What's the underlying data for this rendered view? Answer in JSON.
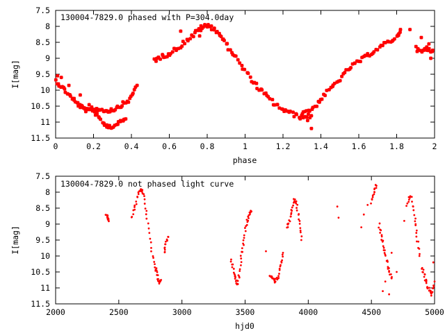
{
  "colors": {
    "points": "#ff0000",
    "axes": "#000000",
    "background": "#ffffff"
  },
  "chart_data": [
    {
      "type": "scatter",
      "title": "130004-7829.0 phased with P=304.0day",
      "xlabel": "phase",
      "ylabel": "I[mag]",
      "xlim": [
        0,
        2
      ],
      "ylim": [
        7.5,
        11.5
      ],
      "y_inverted": true,
      "grid": false,
      "legend": "none",
      "marker": "star",
      "xticks": [
        "0",
        "0.2",
        "0.4",
        "0.6",
        "0.8",
        "1",
        "1.2",
        "1.4",
        "1.6",
        "1.8",
        "2"
      ],
      "yticks": [
        "7.5",
        "8",
        "8.5",
        "9",
        "9.5",
        "10",
        "10.5",
        "11",
        "11.5"
      ],
      "segments": [
        {
          "x": [
            0.0,
            0.04,
            0.08,
            0.11,
            0.14,
            0.17,
            0.2,
            0.23,
            0.27,
            0.31,
            0.35,
            0.39,
            0.43
          ],
          "y": [
            9.7,
            9.95,
            10.2,
            10.4,
            10.55,
            10.65,
            10.6,
            10.6,
            10.65,
            10.6,
            10.45,
            10.3,
            9.85
          ],
          "spread": 0.06
        },
        {
          "x": [
            0.18,
            0.22,
            0.26,
            0.3,
            0.34,
            0.37
          ],
          "y": [
            10.45,
            10.8,
            11.1,
            11.15,
            11.0,
            10.9
          ],
          "spread": 0.05
        },
        {
          "x": [
            0.52,
            0.56,
            0.6,
            0.65,
            0.7,
            0.75,
            0.78,
            0.82,
            0.86,
            0.9,
            0.94,
            1.0,
            1.05,
            1.1,
            1.15,
            1.2,
            1.25,
            1.3,
            1.35
          ],
          "y": [
            9.05,
            8.95,
            8.85,
            8.65,
            8.4,
            8.15,
            8.0,
            8.0,
            8.2,
            8.55,
            8.9,
            9.4,
            9.8,
            10.1,
            10.4,
            10.6,
            10.75,
            10.85,
            10.8
          ],
          "spread": 0.07
        },
        {
          "x": [
            1.3,
            1.35,
            1.4,
            1.45,
            1.5,
            1.55,
            1.6,
            1.65,
            1.7,
            1.75,
            1.8,
            1.82
          ],
          "y": [
            10.7,
            10.6,
            10.3,
            9.95,
            9.65,
            9.3,
            9.1,
            8.9,
            8.7,
            8.5,
            8.35,
            8.1
          ],
          "spread": 0.06
        },
        {
          "x": [
            1.9,
            1.93,
            1.96,
            1.99
          ],
          "y": [
            8.7,
            8.8,
            8.7,
            8.75
          ],
          "spread": 0.07
        }
      ],
      "outliers": [
        {
          "x": 0.01,
          "y": 9.55
        },
        {
          "x": 0.03,
          "y": 9.6
        },
        {
          "x": 0.07,
          "y": 9.85
        },
        {
          "x": 0.13,
          "y": 10.15
        },
        {
          "x": 0.76,
          "y": 8.3
        },
        {
          "x": 0.66,
          "y": 8.15
        },
        {
          "x": 1.35,
          "y": 11.2
        },
        {
          "x": 1.33,
          "y": 10.95
        },
        {
          "x": 1.87,
          "y": 8.1
        },
        {
          "x": 1.97,
          "y": 8.55
        },
        {
          "x": 1.98,
          "y": 9.0
        },
        {
          "x": 1.93,
          "y": 8.35
        }
      ]
    },
    {
      "type": "scatter",
      "title": "130004-7829.0 not phased light curve",
      "xlabel": "hjd0",
      "ylabel": "I[mag]",
      "xlim": [
        2000,
        5000
      ],
      "ylim": [
        7.5,
        11.5
      ],
      "y_inverted": true,
      "grid": false,
      "legend": "none",
      "marker": "dot",
      "xticks": [
        "2000",
        "2500",
        "3000",
        "3500",
        "4000",
        "4500",
        "5000"
      ],
      "yticks": [
        "7.5",
        "8",
        "8.5",
        "9",
        "9.5",
        "10",
        "10.5",
        "11",
        "11.5"
      ],
      "segments": [
        {
          "x": [
            2400,
            2410,
            2420
          ],
          "y": [
            8.7,
            8.8,
            8.9
          ],
          "spread": 0.03
        },
        {
          "x": [
            2600,
            2630,
            2660,
            2680,
            2700,
            2730,
            2760,
            2790,
            2810
          ],
          "y": [
            8.8,
            8.4,
            8.0,
            7.9,
            8.2,
            9.0,
            9.9,
            10.4,
            10.6
          ],
          "spread": 0.05
        },
        {
          "x": [
            2810,
            2820,
            2835
          ],
          "y": [
            10.7,
            10.85,
            10.75
          ],
          "spread": 0.04
        },
        {
          "x": [
            2860,
            2875,
            2890
          ],
          "y": [
            9.9,
            9.6,
            9.4
          ],
          "spread": 0.04
        },
        {
          "x": [
            3390,
            3410,
            3430,
            3440,
            3455,
            3470,
            3490,
            3510,
            3530,
            3550
          ],
          "y": [
            10.1,
            10.5,
            10.8,
            10.9,
            10.6,
            10.0,
            9.5,
            9.0,
            8.7,
            8.6
          ],
          "spread": 0.05
        },
        {
          "x": [
            3700,
            3720,
            3740,
            3760,
            3780,
            3800
          ],
          "y": [
            10.6,
            10.7,
            10.8,
            10.65,
            10.3,
            9.9
          ],
          "spread": 0.04
        },
        {
          "x": [
            3830,
            3850,
            3870,
            3890,
            3910,
            3930,
            3945
          ],
          "y": [
            9.1,
            8.9,
            8.6,
            8.2,
            8.4,
            8.9,
            9.5
          ],
          "spread": 0.05
        },
        {
          "x": [
            4500,
            4520,
            4540
          ],
          "y": [
            8.3,
            8.0,
            7.8
          ],
          "spread": 0.06
        },
        {
          "x": [
            4560,
            4580,
            4600,
            4620,
            4640,
            4660
          ],
          "y": [
            9.0,
            9.4,
            9.7,
            10.1,
            10.5,
            10.7
          ],
          "spread": 0.06
        },
        {
          "x": [
            4780,
            4810,
            4840,
            4860,
            4880
          ],
          "y": [
            8.4,
            8.1,
            8.7,
            9.4,
            10.0
          ],
          "spread": 0.06
        },
        {
          "x": [
            4900,
            4920,
            4940,
            4960,
            4980,
            5000
          ],
          "y": [
            10.4,
            10.6,
            10.9,
            11.1,
            11.2,
            10.8
          ],
          "spread": 0.07
        }
      ],
      "outliers": [
        {
          "x": 4230,
          "y": 8.45
        },
        {
          "x": 4240,
          "y": 8.8
        },
        {
          "x": 3665,
          "y": 9.85
        },
        {
          "x": 4420,
          "y": 9.1
        },
        {
          "x": 4440,
          "y": 8.7
        },
        {
          "x": 4470,
          "y": 8.4
        },
        {
          "x": 4610,
          "y": 10.8
        },
        {
          "x": 4640,
          "y": 11.2
        },
        {
          "x": 4660,
          "y": 9.9
        },
        {
          "x": 4700,
          "y": 10.5
        },
        {
          "x": 4760,
          "y": 8.9
        },
        {
          "x": 4590,
          "y": 11.1
        },
        {
          "x": 4990,
          "y": 10.2
        },
        {
          "x": 4850,
          "y": 9.0
        }
      ]
    }
  ]
}
